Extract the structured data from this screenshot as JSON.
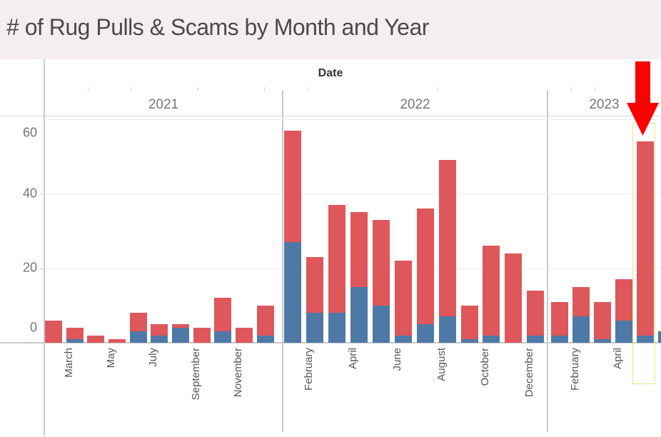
{
  "title": "# of Rug Pulls & Scams by Month and Year",
  "axis": {
    "top_label": "Date",
    "y_tick_labels": [
      "0",
      "20",
      "40",
      "60"
    ]
  },
  "chart_data": {
    "type": "bar",
    "stacked": true,
    "title": "# of Rug Pulls & Scams by Month and Year",
    "x_axis_label": "Date",
    "ylim": [
      0,
      60
    ],
    "y_gridlines": [
      20,
      40,
      60
    ],
    "grid": "horizontal only",
    "legend": "none shown",
    "series_colors": {
      "blue": "#4e79a7",
      "red": "#de575b"
    },
    "panels": [
      {
        "year": "2021",
        "months": [
          {
            "month": "February",
            "axis_label": "",
            "blue": 0,
            "red": 6
          },
          {
            "month": "March",
            "axis_label": "March",
            "blue": 1,
            "red": 3
          },
          {
            "month": "April",
            "axis_label": "",
            "blue": 0,
            "red": 2
          },
          {
            "month": "May",
            "axis_label": "May",
            "blue": 0,
            "red": 1
          },
          {
            "month": "June",
            "axis_label": "",
            "blue": 3,
            "red": 5
          },
          {
            "month": "July",
            "axis_label": "July",
            "blue": 2,
            "red": 3
          },
          {
            "month": "August",
            "axis_label": "",
            "blue": 4,
            "red": 1
          },
          {
            "month": "September",
            "axis_label": "September",
            "blue": 0,
            "red": 4
          },
          {
            "month": "October",
            "axis_label": "",
            "blue": 3,
            "red": 9
          },
          {
            "month": "November",
            "axis_label": "November",
            "blue": 0,
            "red": 4
          },
          {
            "month": "December",
            "axis_label": "",
            "blue": 2,
            "red": 8
          }
        ]
      },
      {
        "year": "2022",
        "months": [
          {
            "month": "January",
            "axis_label": "",
            "blue": 27,
            "red": 30
          },
          {
            "month": "February",
            "axis_label": "February",
            "blue": 8,
            "red": 15
          },
          {
            "month": "March",
            "axis_label": "",
            "blue": 8,
            "red": 29
          },
          {
            "month": "April",
            "axis_label": "April",
            "blue": 15,
            "red": 20
          },
          {
            "month": "May",
            "axis_label": "",
            "blue": 10,
            "red": 23
          },
          {
            "month": "June",
            "axis_label": "June",
            "blue": 2,
            "red": 20
          },
          {
            "month": "July",
            "axis_label": "",
            "blue": 5,
            "red": 31
          },
          {
            "month": "August",
            "axis_label": "August",
            "blue": 7,
            "red": 42
          },
          {
            "month": "September",
            "axis_label": "",
            "blue": 1,
            "red": 9
          },
          {
            "month": "October",
            "axis_label": "October",
            "blue": 2,
            "red": 24
          },
          {
            "month": "November",
            "axis_label": "",
            "blue": 0,
            "red": 24
          },
          {
            "month": "December",
            "axis_label": "December",
            "blue": 2,
            "red": 12
          }
        ]
      },
      {
        "year": "2023",
        "months": [
          {
            "month": "January",
            "axis_label": "",
            "blue": 2,
            "red": 9
          },
          {
            "month": "February",
            "axis_label": "February",
            "blue": 7,
            "red": 8
          },
          {
            "month": "March",
            "axis_label": "",
            "blue": 1,
            "red": 10
          },
          {
            "month": "April",
            "axis_label": "April",
            "blue": 6,
            "red": 11
          },
          {
            "month": "May",
            "axis_label": "",
            "blue": 2,
            "red": 52
          },
          {
            "month": "June",
            "axis_label": "",
            "blue": 3,
            "red": 0,
            "partial": true
          }
        ]
      }
    ],
    "annotations": [
      {
        "type": "red-arrow",
        "points_to": "May 2023 bar",
        "color": "#fa0200"
      },
      {
        "type": "highlight-box",
        "on": "May 2023 bar",
        "border_color": "#e9e388"
      }
    ]
  }
}
